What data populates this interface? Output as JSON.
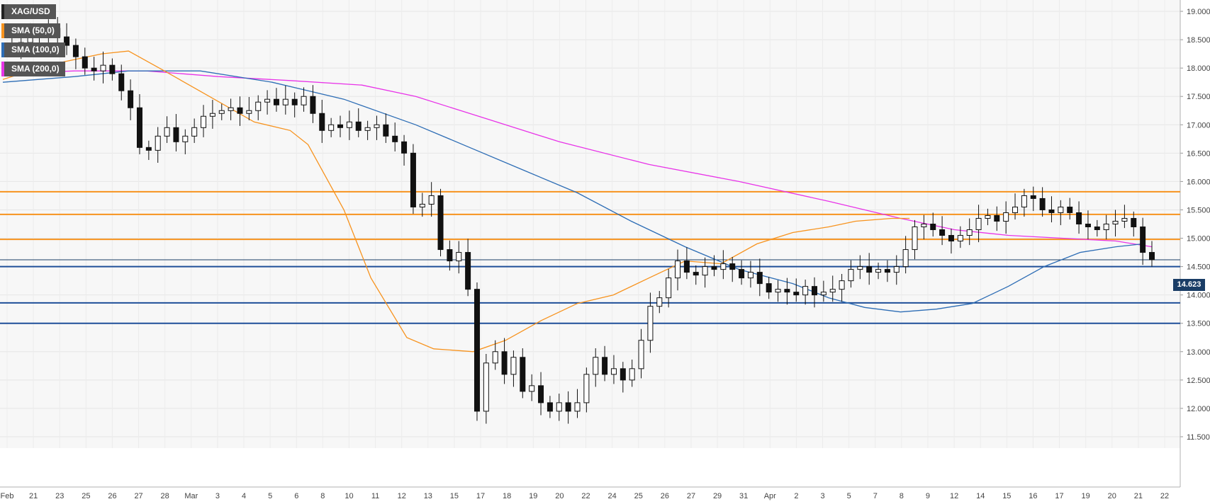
{
  "chart_data": {
    "type": "candlestick",
    "symbol": "XAG/USD",
    "y_range": [
      11.3,
      19.2
    ],
    "y_ticks": [
      "19.000",
      "18.500",
      "18.000",
      "17.500",
      "17.000",
      "16.500",
      "16.000",
      "15.500",
      "15.000",
      "14.500",
      "14.000",
      "13.500",
      "13.000",
      "12.500",
      "12.000",
      "11.500"
    ],
    "x_ticks": [
      "Feb",
      "21",
      "23",
      "25",
      "26",
      "27",
      "28",
      "Mar",
      "3",
      "4",
      "5",
      "6",
      "8",
      "10",
      "11",
      "12",
      "13",
      "15",
      "17",
      "18",
      "19",
      "20",
      "22",
      "24",
      "25",
      "26",
      "27",
      "29",
      "31",
      "Apr",
      "2",
      "3",
      "5",
      "7",
      "8",
      "9",
      "12",
      "14",
      "15",
      "16",
      "17",
      "19",
      "20",
      "21",
      "22"
    ],
    "current_price": "14.623",
    "grid": true,
    "legend": [
      {
        "name": "XAG/USD",
        "color": "#222222"
      },
      {
        "name": "SMA (50,0)",
        "color": "#f7931e"
      },
      {
        "name": "SMA (100,0)",
        "color": "#2d6db5"
      },
      {
        "name": "SMA (200,0)",
        "color": "#e833e8"
      }
    ],
    "resistance_levels": [
      15.82,
      15.42,
      14.98
    ],
    "support_levels": [
      14.5,
      13.86,
      13.5
    ],
    "current_price_value": 14.62,
    "close_path": [
      [
        0,
        18.4
      ],
      [
        3,
        18.38
      ],
      [
        6,
        18.45
      ],
      [
        9,
        18.55
      ],
      [
        12,
        18.6
      ],
      [
        15,
        18.7
      ],
      [
        18,
        18.55
      ],
      [
        21,
        18.4
      ],
      [
        24,
        18.2
      ],
      [
        27,
        18.0
      ],
      [
        30,
        17.95
      ],
      [
        33,
        18.05
      ],
      [
        36,
        17.9
      ],
      [
        39,
        17.6
      ],
      [
        42,
        17.3
      ],
      [
        45,
        16.6
      ],
      [
        48,
        16.55
      ],
      [
        51,
        16.8
      ],
      [
        54,
        16.95
      ],
      [
        57,
        16.7
      ],
      [
        60,
        16.8
      ],
      [
        63,
        16.95
      ],
      [
        66,
        17.15
      ],
      [
        69,
        17.2
      ],
      [
        72,
        17.25
      ],
      [
        75,
        17.3
      ],
      [
        78,
        17.2
      ],
      [
        81,
        17.25
      ],
      [
        84,
        17.4
      ],
      [
        87,
        17.45
      ],
      [
        90,
        17.35
      ],
      [
        93,
        17.45
      ],
      [
        96,
        17.35
      ],
      [
        99,
        17.5
      ],
      [
        102,
        17.2
      ],
      [
        105,
        16.9
      ],
      [
        108,
        17.0
      ],
      [
        111,
        16.95
      ],
      [
        114,
        17.05
      ],
      [
        117,
        16.9
      ],
      [
        120,
        16.95
      ],
      [
        123,
        17.0
      ],
      [
        126,
        16.8
      ],
      [
        129,
        16.7
      ],
      [
        132,
        16.5
      ],
      [
        135,
        15.55
      ],
      [
        138,
        15.6
      ],
      [
        141,
        15.75
      ],
      [
        144,
        14.8
      ],
      [
        147,
        14.6
      ],
      [
        150,
        14.75
      ],
      [
        153,
        14.1
      ],
      [
        156,
        11.95
      ],
      [
        159,
        12.8
      ],
      [
        162,
        13.0
      ],
      [
        165,
        12.6
      ],
      [
        168,
        12.9
      ],
      [
        171,
        12.3
      ],
      [
        174,
        12.4
      ],
      [
        177,
        12.1
      ],
      [
        180,
        11.95
      ],
      [
        183,
        12.1
      ],
      [
        186,
        11.95
      ],
      [
        189,
        12.1
      ],
      [
        192,
        12.6
      ],
      [
        195,
        12.9
      ],
      [
        198,
        12.6
      ],
      [
        201,
        12.7
      ],
      [
        204,
        12.5
      ],
      [
        207,
        12.7
      ],
      [
        210,
        13.2
      ],
      [
        213,
        13.8
      ],
      [
        216,
        13.95
      ],
      [
        219,
        14.3
      ],
      [
        222,
        14.6
      ],
      [
        225,
        14.4
      ],
      [
        228,
        14.35
      ],
      [
        231,
        14.5
      ],
      [
        234,
        14.45
      ],
      [
        237,
        14.55
      ],
      [
        240,
        14.45
      ],
      [
        243,
        14.3
      ],
      [
        246,
        14.4
      ],
      [
        249,
        14.2
      ],
      [
        252,
        14.05
      ],
      [
        255,
        14.1
      ],
      [
        258,
        14.05
      ],
      [
        261,
        14.0
      ],
      [
        264,
        14.15
      ],
      [
        267,
        14.0
      ],
      [
        270,
        14.05
      ],
      [
        273,
        14.1
      ],
      [
        276,
        14.25
      ],
      [
        279,
        14.45
      ],
      [
        282,
        14.5
      ],
      [
        285,
        14.4
      ],
      [
        288,
        14.45
      ],
      [
        291,
        14.4
      ],
      [
        294,
        14.5
      ],
      [
        297,
        14.8
      ],
      [
        300,
        15.2
      ],
      [
        303,
        15.25
      ],
      [
        306,
        15.15
      ],
      [
        309,
        15.05
      ],
      [
        312,
        14.95
      ],
      [
        315,
        15.05
      ],
      [
        318,
        15.15
      ],
      [
        321,
        15.35
      ],
      [
        324,
        15.4
      ],
      [
        327,
        15.3
      ],
      [
        330,
        15.45
      ],
      [
        333,
        15.55
      ],
      [
        336,
        15.75
      ],
      [
        339,
        15.7
      ],
      [
        342,
        15.5
      ],
      [
        345,
        15.45
      ],
      [
        348,
        15.55
      ],
      [
        351,
        15.45
      ],
      [
        354,
        15.25
      ],
      [
        357,
        15.2
      ],
      [
        360,
        15.15
      ],
      [
        363,
        15.25
      ],
      [
        366,
        15.3
      ],
      [
        369,
        15.35
      ],
      [
        372,
        15.2
      ],
      [
        375,
        14.75
      ],
      [
        378,
        14.62
      ]
    ],
    "sma_50": [
      [
        0,
        17.8
      ],
      [
        25,
        18.05
      ],
      [
        55,
        18.25
      ],
      [
        70,
        18.3
      ],
      [
        90,
        17.95
      ],
      [
        115,
        17.5
      ],
      [
        140,
        17.05
      ],
      [
        160,
        16.9
      ],
      [
        170,
        16.65
      ],
      [
        190,
        15.5
      ],
      [
        205,
        14.3
      ],
      [
        225,
        13.25
      ],
      [
        240,
        13.05
      ],
      [
        262,
        13.0
      ],
      [
        280,
        13.2
      ],
      [
        300,
        13.55
      ],
      [
        320,
        13.85
      ],
      [
        340,
        14.0
      ],
      [
        360,
        14.3
      ],
      [
        380,
        14.6
      ],
      [
        400,
        14.55
      ],
      [
        420,
        14.9
      ],
      [
        440,
        15.1
      ],
      [
        460,
        15.2
      ],
      [
        475,
        15.3
      ],
      [
        495,
        15.35
      ],
      [
        505,
        15.35
      ]
    ],
    "sma_100": [
      [
        0,
        17.75
      ],
      [
        40,
        17.85
      ],
      [
        70,
        17.95
      ],
      [
        110,
        17.95
      ],
      [
        150,
        17.75
      ],
      [
        190,
        17.45
      ],
      [
        230,
        17.0
      ],
      [
        260,
        16.6
      ],
      [
        290,
        16.2
      ],
      [
        320,
        15.8
      ],
      [
        350,
        15.3
      ],
      [
        380,
        14.85
      ],
      [
        410,
        14.45
      ],
      [
        440,
        14.2
      ],
      [
        460,
        13.95
      ],
      [
        480,
        13.78
      ],
      [
        500,
        13.7
      ],
      [
        520,
        13.75
      ],
      [
        540,
        13.85
      ],
      [
        560,
        14.15
      ],
      [
        580,
        14.5
      ],
      [
        600,
        14.75
      ],
      [
        620,
        14.85
      ],
      [
        635,
        14.9
      ]
    ],
    "sma_200": [
      [
        0,
        17.9
      ],
      [
        40,
        17.95
      ],
      [
        80,
        17.95
      ],
      [
        120,
        17.85
      ],
      [
        160,
        17.78
      ],
      [
        200,
        17.7
      ],
      [
        230,
        17.5
      ],
      [
        270,
        17.1
      ],
      [
        310,
        16.7
      ],
      [
        360,
        16.3
      ],
      [
        410,
        16.0
      ],
      [
        460,
        15.65
      ],
      [
        500,
        15.35
      ],
      [
        530,
        15.15
      ],
      [
        560,
        15.05
      ],
      [
        590,
        15.0
      ],
      [
        620,
        14.95
      ],
      [
        640,
        14.85
      ]
    ]
  }
}
